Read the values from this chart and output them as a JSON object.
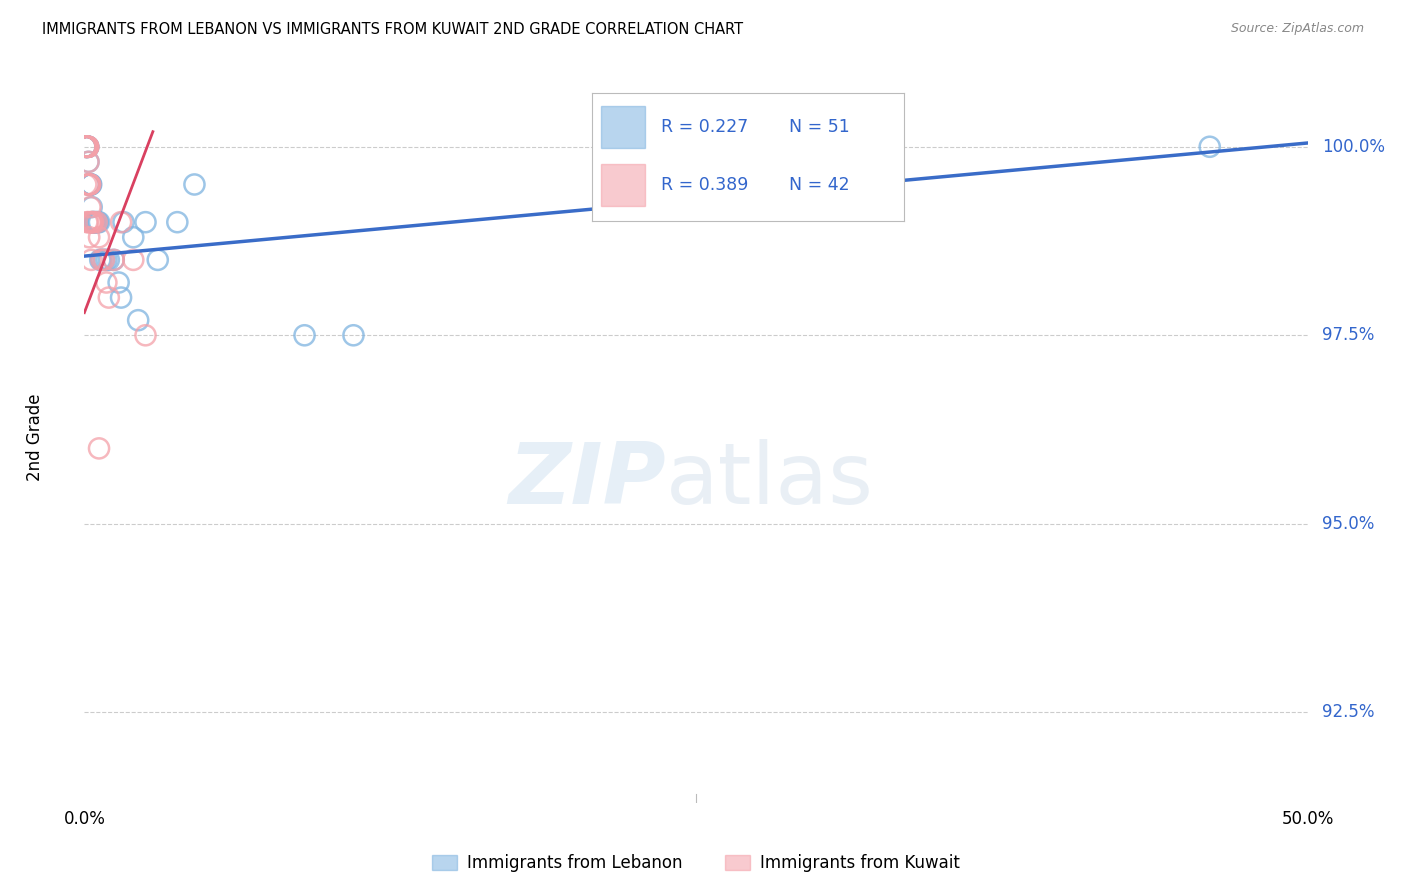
{
  "title": "IMMIGRANTS FROM LEBANON VS IMMIGRANTS FROM KUWAIT 2ND GRADE CORRELATION CHART",
  "source": "Source: ZipAtlas.com",
  "ylabel": "2nd Grade",
  "yticks": [
    100.0,
    97.5,
    95.0,
    92.5
  ],
  "ytick_labels": [
    "100.0%",
    "97.5%",
    "95.0%",
    "92.5%"
  ],
  "xmin": 0.0,
  "xmax": 50.0,
  "ymin": 91.3,
  "ymax": 101.0,
  "legend_r1": "R = 0.227",
  "legend_n1": "N = 51",
  "legend_r2": "R = 0.389",
  "legend_n2": "N = 42",
  "color_lebanon": "#7EB3E0",
  "color_kuwait": "#F4A0A8",
  "color_trendline_lebanon": "#3A6CC8",
  "color_trendline_kuwait": "#D94060",
  "legend_label1": "Immigrants from Lebanon",
  "legend_label2": "Immigrants from Kuwait",
  "trendline_lebanon": [
    0.0,
    50.0,
    98.55,
    100.05
  ],
  "trendline_kuwait": [
    0.0,
    2.8,
    97.8,
    100.2
  ],
  "lebanon_x": [
    0.04,
    0.05,
    0.06,
    0.07,
    0.08,
    0.09,
    0.1,
    0.1,
    0.11,
    0.12,
    0.13,
    0.14,
    0.15,
    0.15,
    0.16,
    0.17,
    0.18,
    0.2,
    0.21,
    0.22,
    0.23,
    0.25,
    0.26,
    0.28,
    0.3,
    0.32,
    0.35,
    0.38,
    0.4,
    0.45,
    0.5,
    0.55,
    0.6,
    0.65,
    0.7,
    0.8,
    0.9,
    1.0,
    1.2,
    1.4,
    1.6,
    2.0,
    2.5,
    3.0,
    3.8,
    4.5,
    1.5,
    2.2,
    9.0,
    11.0,
    46.0
  ],
  "lebanon_y": [
    100.0,
    100.0,
    100.0,
    100.0,
    100.0,
    100.0,
    100.0,
    100.0,
    100.0,
    100.0,
    100.0,
    100.0,
    100.0,
    100.0,
    100.0,
    99.8,
    99.5,
    99.5,
    99.5,
    99.5,
    99.5,
    99.5,
    99.5,
    99.5,
    99.2,
    99.0,
    99.0,
    99.0,
    99.0,
    99.0,
    99.0,
    99.0,
    99.0,
    98.5,
    98.5,
    98.5,
    98.5,
    98.5,
    98.5,
    98.2,
    99.0,
    98.8,
    99.0,
    98.5,
    99.0,
    99.5,
    98.0,
    97.7,
    97.5,
    97.5,
    100.0
  ],
  "kuwait_x": [
    0.04,
    0.05,
    0.06,
    0.07,
    0.08,
    0.09,
    0.1,
    0.11,
    0.12,
    0.13,
    0.14,
    0.15,
    0.15,
    0.16,
    0.17,
    0.18,
    0.2,
    0.22,
    0.24,
    0.25,
    0.26,
    0.28,
    0.3,
    0.32,
    0.35,
    0.4,
    0.5,
    0.6,
    0.7,
    0.8,
    0.9,
    1.0,
    1.2,
    1.5,
    2.0,
    2.5,
    0.08,
    0.12,
    0.16,
    0.2,
    0.28,
    0.6
  ],
  "kuwait_y": [
    100.0,
    100.0,
    100.0,
    100.0,
    100.0,
    100.0,
    100.0,
    100.0,
    100.0,
    100.0,
    100.0,
    100.0,
    100.0,
    100.0,
    99.8,
    99.5,
    99.5,
    99.5,
    99.5,
    99.2,
    99.0,
    99.0,
    99.0,
    99.0,
    99.0,
    99.0,
    99.0,
    98.8,
    98.5,
    98.5,
    98.2,
    98.0,
    98.5,
    99.0,
    98.5,
    97.5,
    99.5,
    99.0,
    99.0,
    98.8,
    98.5,
    96.0
  ]
}
